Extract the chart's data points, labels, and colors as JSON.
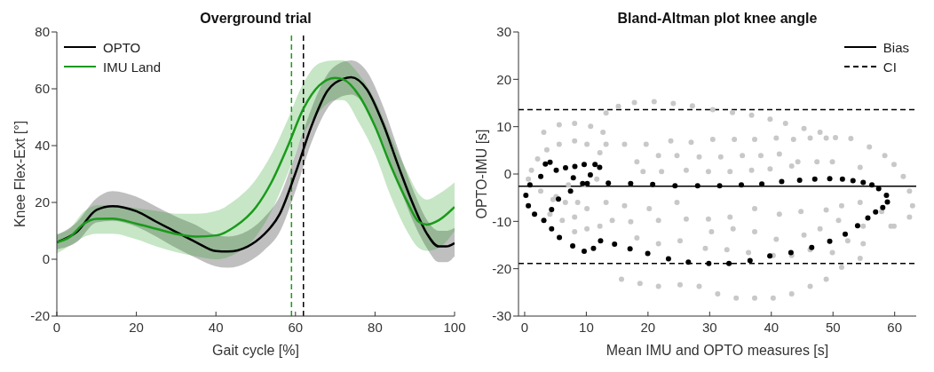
{
  "chart_data": [
    {
      "type": "line",
      "title": "Overground trial",
      "xlabel": "Gait cycle [%]",
      "ylabel": "Knee Flex-Ext [°]",
      "xlim": [
        0,
        100
      ],
      "xticks": [
        0,
        20,
        40,
        60,
        80,
        100
      ],
      "ylim": [
        -20,
        80
      ],
      "yticks": [
        -20,
        0,
        20,
        40,
        60,
        80
      ],
      "grid": false,
      "legend": "top left",
      "marker": "none",
      "series": [
        {
          "name": "OPTO",
          "color": "#000000",
          "x": [
            0,
            5,
            10,
            14,
            20,
            25,
            30,
            35,
            40,
            43,
            48,
            52,
            56,
            60,
            64,
            68,
            72,
            74,
            78,
            82,
            86,
            90,
            93,
            96,
            98,
            100
          ],
          "values": [
            6.0,
            9.6,
            17.4,
            18.7,
            16.9,
            13.2,
            9.6,
            6.0,
            2.9,
            2.7,
            4.5,
            8.6,
            15.8,
            30.3,
            46.8,
            59.2,
            63.5,
            64.1,
            59.7,
            47.8,
            32.3,
            17.9,
            9.1,
            4.5,
            4.5,
            5.7
          ],
          "lower": [
            3.5,
            6,
            13,
            13.5,
            11.5,
            8,
            4,
            0.5,
            -2.5,
            -3,
            -1,
            3,
            9.5,
            24,
            41,
            53,
            57.5,
            58,
            53,
            41,
            26,
            12,
            4,
            -1,
            -1,
            1
          ],
          "upper": [
            8.5,
            13,
            21.5,
            24,
            22,
            18.5,
            15,
            12,
            8.5,
            8,
            10,
            14.5,
            22,
            37,
            53,
            65,
            69.5,
            70,
            66,
            54,
            38,
            23,
            14,
            10,
            10,
            11
          ]
        },
        {
          "name": "IMU Land",
          "color": "#1a9a1a",
          "x": [
            0,
            3,
            7,
            10,
            14,
            20,
            25,
            30,
            35,
            40,
            45,
            50,
            54,
            58,
            62,
            66,
            70,
            72,
            76,
            80,
            84,
            88,
            91,
            93,
            96,
            100
          ],
          "values": [
            6.0,
            7.6,
            12.7,
            14.2,
            14.3,
            12.5,
            10.7,
            8.9,
            8.0,
            8.4,
            11.7,
            18.2,
            27.2,
            39.5,
            53.0,
            61.2,
            63.8,
            63.3,
            57.6,
            46.8,
            32.8,
            20.5,
            13.2,
            12.2,
            13.7,
            18.4
          ],
          "lower": [
            2,
            4.5,
            8,
            9,
            9,
            7,
            4.5,
            2.5,
            1,
            0,
            2,
            8,
            17,
            30,
            44,
            52,
            56,
            56,
            48,
            37,
            22,
            10,
            4,
            3,
            4,
            10
          ],
          "upper": [
            9,
            10.5,
            17,
            19,
            19,
            18,
            17,
            16,
            16,
            17,
            21,
            28,
            37,
            49,
            62,
            69,
            70,
            70,
            65,
            56,
            43,
            31,
            23,
            21,
            23,
            27
          ]
        }
      ],
      "ref_lines": [
        {
          "axis": "x",
          "value": 59,
          "color": "#1a9a1a",
          "line_style": "dashed"
        },
        {
          "axis": "x",
          "value": 62,
          "color": "#000000",
          "line_style": "dashed"
        }
      ]
    },
    {
      "type": "scatter",
      "title": "Bland-Altman plot knee angle",
      "xlabel": "Mean IMU and OPTO measures [s]",
      "ylabel": "OPTO-IMU [s]",
      "xlim": [
        -1,
        63.5
      ],
      "xticks": [
        0,
        10,
        20,
        30,
        40,
        50,
        60
      ],
      "ylim": [
        -30,
        30
      ],
      "yticks": [
        -30,
        -20,
        -10,
        0,
        10,
        20,
        30
      ],
      "grid": false,
      "legend": "top right",
      "marker": "circle",
      "series": [
        {
          "color": "#c8c8c8",
          "x": [
            13.2,
            15.2,
            17.8,
            21.0,
            24.1,
            27.2,
            30.5,
            33.7,
            36.8,
            39.8,
            42.3,
            45.3,
            47.9,
            50.4,
            52.9,
            55.9,
            58.4,
            59.9,
            61.4,
            62.4,
            62.9,
            62.4,
            59.9,
            16.2,
            19.7,
            23.7,
            27.0,
            30.5,
            34.0,
            37.3,
            40.8,
            43.6,
            46.3,
            48.9,
            18.2,
            21.7,
            24.7,
            28.3,
            31.8,
            35.3,
            38.3,
            41.3,
            44.3,
            47.4,
            49.9,
            54.4,
            19.2,
            22.2,
            26.2,
            29.8,
            33.3,
            36.8,
            39.8,
            43.3,
            13.2,
            16.2,
            20.2,
            24.7,
            29.8,
            33.3,
            37.3,
            41.3,
            44.8,
            48.9,
            51.4,
            54.4,
            57.9,
            14.2,
            17.2,
            21.7,
            26.2,
            30.3,
            33.8,
            37.3,
            40.8,
            45.3,
            47.9,
            50.9,
            54.9,
            59.4,
            18.2,
            21.7,
            25.2,
            29.3,
            32.8,
            36.3,
            40.3,
            43.3,
            46.3,
            49.9,
            52.4,
            54.9,
            15.7,
            18.7,
            21.7,
            25.2,
            28.3,
            31.3,
            34.3,
            37.3,
            40.3,
            43.3,
            46.3,
            48.9,
            51.4,
            54.4,
            3.1,
            5.6,
            8.1,
            10.7,
            12.7,
            13.2,
            12.2,
            10.1,
            8.1,
            5.6,
            3.6,
            2.1,
            1.1,
            0.6,
            2.6,
            4.6,
            6.6,
            8.6,
            10.1,
            8.1,
            6.1,
            5.1,
            7.1,
            9.6,
            11.7,
            4.1,
            8.1,
            10.1,
            12.2
          ],
          "values": [
            12.9,
            14.3,
            15.1,
            15.3,
            14.9,
            14.4,
            13.6,
            13.0,
            12.4,
            11.6,
            10.7,
            9.6,
            8.8,
            7.7,
            7.5,
            5.7,
            3.9,
            2.0,
            -0.5,
            -3.6,
            -6.7,
            -9.1,
            -11.0,
            6.3,
            6.3,
            7.0,
            6.7,
            7.3,
            7.3,
            7.3,
            7.6,
            7.3,
            7.6,
            7.6,
            2.6,
            3.9,
            3.9,
            3.6,
            3.6,
            3.9,
            3.9,
            4.2,
            2.6,
            2.6,
            2.6,
            1.4,
            0.5,
            0.5,
            0.8,
            0.5,
            0.5,
            0.8,
            1.1,
            1.7,
            -6.0,
            -6.7,
            -7.3,
            -6.0,
            -9.5,
            -9.1,
            -7.3,
            -8.5,
            -7.9,
            -7.6,
            -6.7,
            -6.0,
            -7.9,
            -9.8,
            -10.1,
            -9.8,
            -9.5,
            -12.2,
            -11.6,
            -12.2,
            -13.8,
            -12.9,
            -11.6,
            -9.8,
            -11.0,
            -11.0,
            -13.5,
            -14.7,
            -14.1,
            -15.7,
            -16.0,
            -16.6,
            -17.2,
            -17.2,
            -16.0,
            -16.6,
            -14.1,
            -14.7,
            -22.2,
            -23.1,
            -23.7,
            -23.4,
            -23.7,
            -25.3,
            -26.2,
            -26.2,
            -26.2,
            -25.3,
            -23.7,
            -22.2,
            -19.7,
            -17.8,
            8.8,
            10.4,
            10.7,
            10.1,
            8.8,
            6.3,
            4.5,
            6.3,
            7.0,
            6.3,
            5.1,
            3.2,
            0.8,
            -1.1,
            -3.6,
            -5.4,
            -6.0,
            -6.0,
            -7.3,
            -9.1,
            -9.8,
            -4.8,
            -2.3,
            -2.3,
            -1.1,
            -8.5,
            -12.2,
            -11.6,
            -11.0
          ]
        },
        {
          "color": "#000000",
          "x": [
            4.37,
            5.63,
            7.79,
            9.65,
            11.16,
            12.31,
            14.58,
            17.09,
            19.96,
            23.32,
            26.54,
            29.86,
            33.13,
            36.55,
            39.76,
            43.18,
            46.55,
            49.47,
            51.98,
            53.99,
            55.65,
            56.91,
            58.07,
            58.82,
            58.67,
            57.41,
            56.31,
            54.9,
            53.24,
            51.53,
            49.47,
            47.05,
            44.59,
            41.68,
            38.46,
            35.14,
            31.62,
            28.05,
            24.38,
            20.76,
            17.19,
            13.57,
            9.4,
            7.44,
            5.48,
            4.37,
            7.89,
            4.12,
            3.36,
            11.41,
            12.16,
            8.14,
            5.12,
            2.61,
            0.85,
            0.2,
            0.6,
            1.6,
            3.11,
            10.65,
            10.15,
            9.65,
            6.63
          ],
          "values": [
            -11.6,
            -13.4,
            -15.2,
            -16.3,
            -15.7,
            -14.1,
            -14.8,
            -15.8,
            -16.8,
            -17.9,
            -18.6,
            -18.9,
            -18.9,
            -18.3,
            -17.3,
            -16.6,
            -15.5,
            -14.2,
            -12.7,
            -10.9,
            -9.3,
            -8.0,
            -7.1,
            -5.9,
            -4.5,
            -3.1,
            -2.3,
            -1.8,
            -1.4,
            -1.1,
            -1.0,
            -1.1,
            -1.3,
            -1.6,
            -2.1,
            -2.3,
            -2.5,
            -2.5,
            -2.5,
            -2.2,
            -2.0,
            -1.9,
            -2.0,
            -3.6,
            -5.3,
            -7.5,
            -0.8,
            2.5,
            2.1,
            2.0,
            1.4,
            1.6,
            0.8,
            -0.5,
            -2.3,
            -4.5,
            -6.7,
            -8.5,
            -9.8,
            -0.2,
            -2.0,
            2.0,
            1.3
          ]
        }
      ],
      "ref_lines": [
        {
          "axis": "y",
          "value": -2.6,
          "label": "Bias",
          "color": "#000000",
          "line_style": "solid"
        },
        {
          "axis": "y",
          "value": 13.6,
          "label": "CI",
          "color": "#000000",
          "line_style": "dashed"
        },
        {
          "axis": "y",
          "value": -18.9,
          "color": "#000000",
          "line_style": "dashed"
        }
      ]
    }
  ]
}
